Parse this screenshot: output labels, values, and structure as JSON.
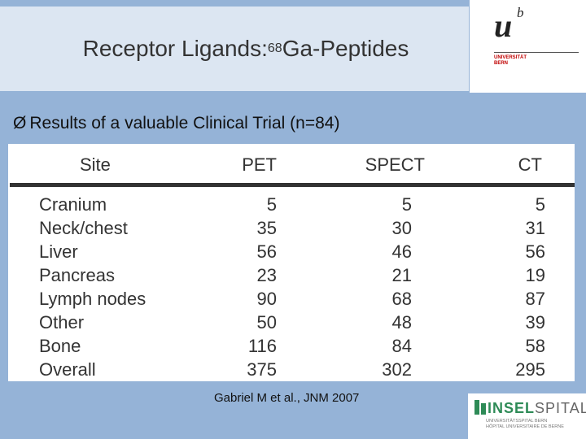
{
  "title": {
    "prefix": "Receptor Ligands: ",
    "sup": "68",
    "suffix": "Ga-Peptides"
  },
  "bullet": {
    "arrow": "Ø",
    "text": "Results of a valuable Clinical Trial (n=84)"
  },
  "table": {
    "headers": [
      "Site",
      "PET",
      "SPECT",
      "CT"
    ],
    "rows": [
      [
        "Cranium",
        "5",
        "5",
        "5"
      ],
      [
        "Neck/chest",
        "35",
        "30",
        "31"
      ],
      [
        "Liver",
        "56",
        "46",
        "56"
      ],
      [
        "Pancreas",
        "23",
        "21",
        "19"
      ],
      [
        "Lymph nodes",
        "90",
        "68",
        "87"
      ],
      [
        "Other",
        "50",
        "48",
        "39"
      ],
      [
        "Bone",
        "116",
        "84",
        "58"
      ],
      [
        "Overall",
        "375",
        "302",
        "295"
      ]
    ]
  },
  "citation": "Gabriel M et al., JNM 2007",
  "logo_unibe": {
    "u": "u",
    "b": "b",
    "line1": "UNIVERSITÄT",
    "line2": "BERN"
  },
  "logo_insel": {
    "word_a": "INSEL",
    "word_b": "SPITAL",
    "sub1": "UNIVERSITÄTSSPITAL BERN",
    "sub2": "HÔPITAL UNIVERSITAIRE DE BERNE"
  },
  "colors": {
    "background": "#95b3d7",
    "title_band": "#dce6f2",
    "insel_green": "#2e8b57",
    "unibe_red": "#c00000"
  }
}
